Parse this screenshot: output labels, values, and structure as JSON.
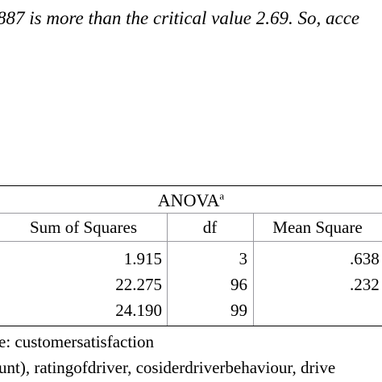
{
  "intro_text": "887 is more than the critical value 2.69. So, acce",
  "table": {
    "title": "ANOVA",
    "title_sup": "a",
    "headers": [
      "Sum of Squares",
      "df",
      "Mean Square"
    ],
    "rows": [
      {
        "sum_of_squares": "1.915",
        "df": "3",
        "mean_square": ".638"
      },
      {
        "sum_of_squares": "22.275",
        "df": "96",
        "mean_square": ".232"
      },
      {
        "sum_of_squares": "24.190",
        "df": "99",
        "mean_square": ""
      }
    ],
    "footnote_a": "e: customersatisfaction",
    "footnote_b": "unt), ratingofdriver, cosiderdriverbehaviour, drive"
  }
}
